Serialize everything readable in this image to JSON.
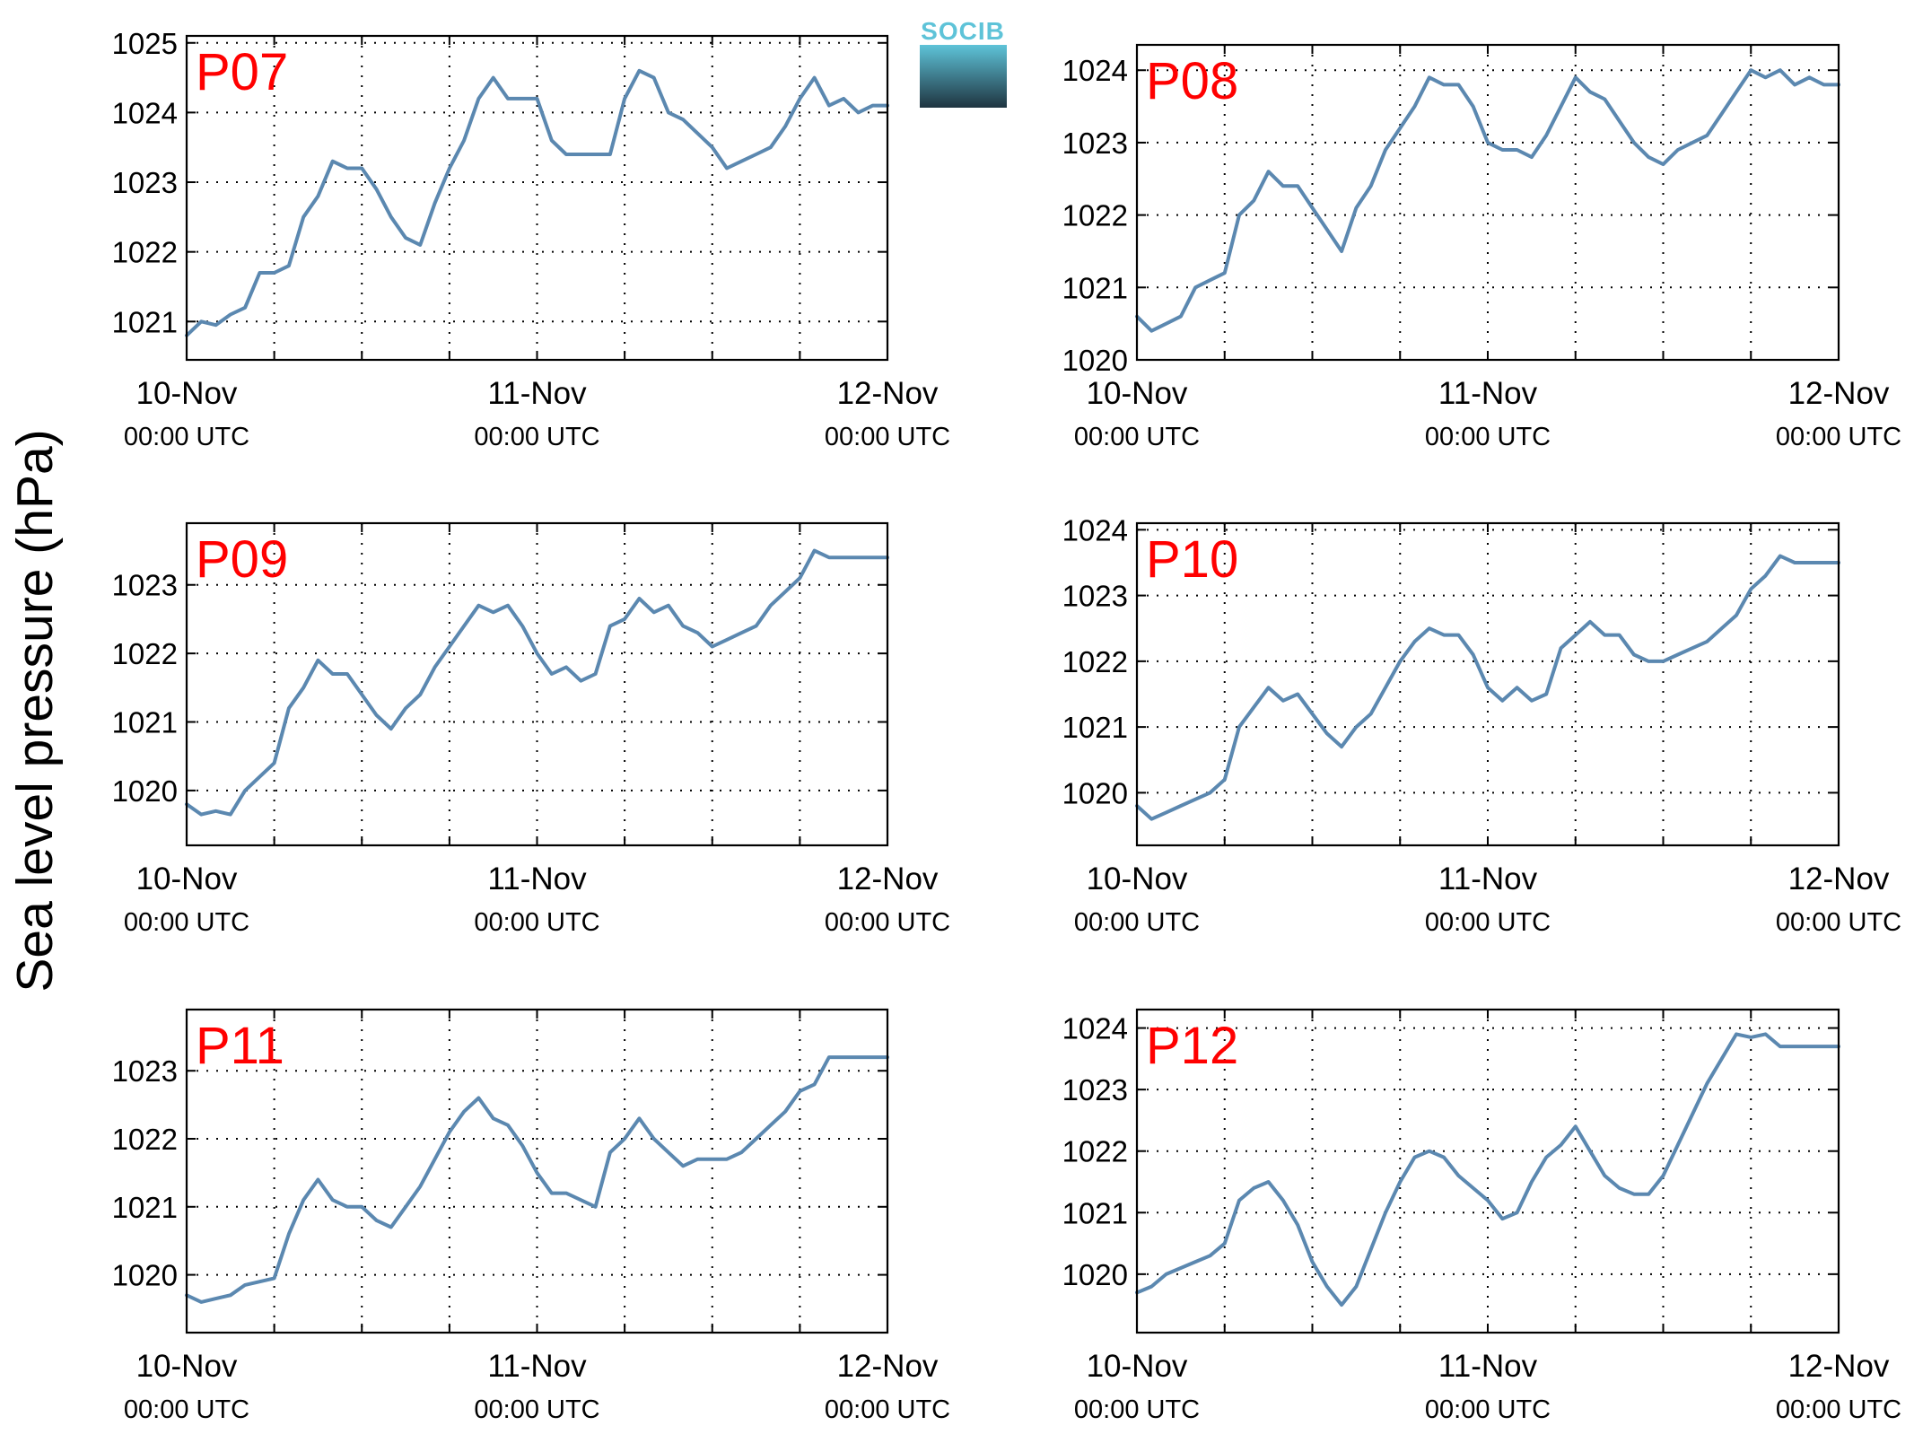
{
  "colors": {
    "line": "#5b88b0",
    "title": "#ff0000",
    "logo_top": "#5ec3d8",
    "logo_bottom": "#1f3440"
  },
  "figure": {
    "ylabel": "Sea level pressure (hPa)",
    "logo_text": "SOCIB"
  },
  "chart_data": [
    {
      "type": "line",
      "title": "P07",
      "x_ticks": [
        {
          "date": "10-Nov",
          "time": "00:00 UTC"
        },
        {
          "date": "11-Nov",
          "time": "00:00 UTC"
        },
        {
          "date": "12-Nov",
          "time": "00:00 UTC"
        }
      ],
      "xlim": [
        0,
        48
      ],
      "ylim": [
        1020.45,
        1025.1
      ],
      "y_ticks": [
        1021,
        1022,
        1023,
        1024,
        1025
      ],
      "grid": true,
      "series": [
        {
          "x": [
            0,
            1,
            2,
            3,
            4,
            5,
            6,
            7,
            8,
            9,
            10,
            11,
            12,
            13,
            14,
            15,
            16,
            17,
            18,
            19,
            20,
            21,
            22,
            23,
            24,
            25,
            26,
            27,
            28,
            29,
            30,
            31,
            32,
            33,
            34,
            35,
            36,
            37,
            38,
            39,
            40,
            41,
            42,
            43,
            44,
            45,
            46,
            47,
            48
          ],
          "y": [
            1020.8,
            1021.0,
            1020.95,
            1021.1,
            1021.2,
            1021.7,
            1021.7,
            1021.8,
            1022.5,
            1022.8,
            1023.3,
            1023.2,
            1023.2,
            1022.9,
            1022.5,
            1022.2,
            1022.1,
            1022.7,
            1023.2,
            1023.6,
            1024.2,
            1024.5,
            1024.2,
            1024.2,
            1024.2,
            1023.6,
            1023.4,
            1023.4,
            1023.4,
            1023.4,
            1024.2,
            1024.6,
            1024.5,
            1024.0,
            1023.9,
            1023.7,
            1023.5,
            1023.2,
            1023.3,
            1023.4,
            1023.5,
            1023.8,
            1024.2,
            1024.5,
            1024.1,
            1024.2,
            1024.0,
            1024.1,
            1024.1
          ]
        }
      ]
    },
    {
      "type": "line",
      "title": "P08",
      "x_ticks": [
        {
          "date": "10-Nov",
          "time": "00:00 UTC"
        },
        {
          "date": "11-Nov",
          "time": "00:00 UTC"
        },
        {
          "date": "12-Nov",
          "time": "00:00 UTC"
        }
      ],
      "xlim": [
        0,
        48
      ],
      "ylim": [
        1020,
        1024.35
      ],
      "y_ticks": [
        1020,
        1021,
        1022,
        1023,
        1024
      ],
      "grid": true,
      "series": [
        {
          "x": [
            0,
            1,
            2,
            3,
            4,
            5,
            6,
            7,
            8,
            9,
            10,
            11,
            12,
            13,
            14,
            15,
            16,
            17,
            18,
            19,
            20,
            21,
            22,
            23,
            24,
            25,
            26,
            27,
            28,
            29,
            30,
            31,
            32,
            33,
            34,
            35,
            36,
            37,
            38,
            39,
            40,
            41,
            42,
            43,
            44,
            45,
            46,
            47,
            48
          ],
          "y": [
            1020.6,
            1020.4,
            1020.5,
            1020.6,
            1021.0,
            1021.1,
            1021.2,
            1022.0,
            1022.2,
            1022.6,
            1022.4,
            1022.4,
            1022.1,
            1021.8,
            1021.5,
            1022.1,
            1022.4,
            1022.9,
            1023.2,
            1023.5,
            1023.9,
            1023.8,
            1023.8,
            1023.5,
            1023.0,
            1022.9,
            1022.9,
            1022.8,
            1023.1,
            1023.5,
            1023.9,
            1023.7,
            1023.6,
            1023.3,
            1023.0,
            1022.8,
            1022.7,
            1022.9,
            1023.0,
            1023.1,
            1023.4,
            1023.7,
            1024.0,
            1023.9,
            1024.0,
            1023.8,
            1023.9,
            1023.8,
            1023.8
          ]
        }
      ]
    },
    {
      "type": "line",
      "title": "P09",
      "x_ticks": [
        {
          "date": "10-Nov",
          "time": "00:00 UTC"
        },
        {
          "date": "11-Nov",
          "time": "00:00 UTC"
        },
        {
          "date": "12-Nov",
          "time": "00:00 UTC"
        }
      ],
      "xlim": [
        0,
        48
      ],
      "ylim": [
        1019.2,
        1023.9
      ],
      "y_ticks": [
        1020,
        1021,
        1022,
        1023
      ],
      "grid": true,
      "series": [
        {
          "x": [
            0,
            1,
            2,
            3,
            4,
            5,
            6,
            7,
            8,
            9,
            10,
            11,
            12,
            13,
            14,
            15,
            16,
            17,
            18,
            19,
            20,
            21,
            22,
            23,
            24,
            25,
            26,
            27,
            28,
            29,
            30,
            31,
            32,
            33,
            34,
            35,
            36,
            37,
            38,
            39,
            40,
            41,
            42,
            43,
            44,
            45,
            46,
            47,
            48
          ],
          "y": [
            1019.8,
            1019.65,
            1019.7,
            1019.65,
            1020.0,
            1020.2,
            1020.4,
            1021.2,
            1021.5,
            1021.9,
            1021.7,
            1021.7,
            1021.4,
            1021.1,
            1020.9,
            1021.2,
            1021.4,
            1021.8,
            1022.1,
            1022.4,
            1022.7,
            1022.6,
            1022.7,
            1022.4,
            1022.0,
            1021.7,
            1021.8,
            1021.6,
            1021.7,
            1022.4,
            1022.5,
            1022.8,
            1022.6,
            1022.7,
            1022.4,
            1022.3,
            1022.1,
            1022.2,
            1022.3,
            1022.4,
            1022.7,
            1022.9,
            1023.1,
            1023.5,
            1023.4,
            1023.4,
            1023.4,
            1023.4,
            1023.4
          ]
        }
      ]
    },
    {
      "type": "line",
      "title": "P10",
      "x_ticks": [
        {
          "date": "10-Nov",
          "time": "00:00 UTC"
        },
        {
          "date": "11-Nov",
          "time": "00:00 UTC"
        },
        {
          "date": "12-Nov",
          "time": "00:00 UTC"
        }
      ],
      "xlim": [
        0,
        48
      ],
      "ylim": [
        1019.2,
        1024.1
      ],
      "y_ticks": [
        1020,
        1021,
        1022,
        1023,
        1024
      ],
      "grid": true,
      "series": [
        {
          "x": [
            0,
            1,
            2,
            3,
            4,
            5,
            6,
            7,
            8,
            9,
            10,
            11,
            12,
            13,
            14,
            15,
            16,
            17,
            18,
            19,
            20,
            21,
            22,
            23,
            24,
            25,
            26,
            27,
            28,
            29,
            30,
            31,
            32,
            33,
            34,
            35,
            36,
            37,
            38,
            39,
            40,
            41,
            42,
            43,
            44,
            45,
            46,
            47,
            48
          ],
          "y": [
            1019.8,
            1019.6,
            1019.7,
            1019.8,
            1019.9,
            1020.0,
            1020.2,
            1021.0,
            1021.3,
            1021.6,
            1021.4,
            1021.5,
            1021.2,
            1020.9,
            1020.7,
            1021.0,
            1021.2,
            1021.6,
            1022.0,
            1022.3,
            1022.5,
            1022.4,
            1022.4,
            1022.1,
            1021.6,
            1021.4,
            1021.6,
            1021.4,
            1021.5,
            1022.2,
            1022.4,
            1022.6,
            1022.4,
            1022.4,
            1022.1,
            1022.0,
            1022.0,
            1022.1,
            1022.2,
            1022.3,
            1022.5,
            1022.7,
            1023.1,
            1023.3,
            1023.6,
            1023.5,
            1023.5,
            1023.5,
            1023.5
          ]
        }
      ]
    },
    {
      "type": "line",
      "title": "P11",
      "x_ticks": [
        {
          "date": "10-Nov",
          "time": "00:00 UTC"
        },
        {
          "date": "11-Nov",
          "time": "00:00 UTC"
        },
        {
          "date": "12-Nov",
          "time": "00:00 UTC"
        }
      ],
      "xlim": [
        0,
        48
      ],
      "ylim": [
        1019.15,
        1023.9
      ],
      "y_ticks": [
        1020,
        1021,
        1022,
        1023
      ],
      "grid": true,
      "series": [
        {
          "x": [
            0,
            1,
            2,
            3,
            4,
            5,
            6,
            7,
            8,
            9,
            10,
            11,
            12,
            13,
            14,
            15,
            16,
            17,
            18,
            19,
            20,
            21,
            22,
            23,
            24,
            25,
            26,
            27,
            28,
            29,
            30,
            31,
            32,
            33,
            34,
            35,
            36,
            37,
            38,
            39,
            40,
            41,
            42,
            43,
            44,
            45,
            46,
            47,
            48
          ],
          "y": [
            1019.7,
            1019.6,
            1019.65,
            1019.7,
            1019.85,
            1019.9,
            1019.95,
            1020.6,
            1021.1,
            1021.4,
            1021.1,
            1021.0,
            1021.0,
            1020.8,
            1020.7,
            1021.0,
            1021.3,
            1021.7,
            1022.1,
            1022.4,
            1022.6,
            1022.3,
            1022.2,
            1021.9,
            1021.5,
            1021.2,
            1021.2,
            1021.1,
            1021.0,
            1021.8,
            1022.0,
            1022.3,
            1022.0,
            1021.8,
            1021.6,
            1021.7,
            1021.7,
            1021.7,
            1021.8,
            1022.0,
            1022.2,
            1022.4,
            1022.7,
            1022.8,
            1023.2,
            1023.2,
            1023.2,
            1023.2,
            1023.2
          ]
        }
      ]
    },
    {
      "type": "line",
      "title": "P12",
      "x_ticks": [
        {
          "date": "10-Nov",
          "time": "00:00 UTC"
        },
        {
          "date": "11-Nov",
          "time": "00:00 UTC"
        },
        {
          "date": "12-Nov",
          "time": "00:00 UTC"
        }
      ],
      "xlim": [
        0,
        48
      ],
      "ylim": [
        1019.05,
        1024.3
      ],
      "y_ticks": [
        1020,
        1021,
        1022,
        1023,
        1024
      ],
      "grid": true,
      "series": [
        {
          "x": [
            0,
            1,
            2,
            3,
            4,
            5,
            6,
            7,
            8,
            9,
            10,
            11,
            12,
            13,
            14,
            15,
            16,
            17,
            18,
            19,
            20,
            21,
            22,
            23,
            24,
            25,
            26,
            27,
            28,
            29,
            30,
            31,
            32,
            33,
            34,
            35,
            36,
            37,
            38,
            39,
            40,
            41,
            42,
            43,
            44,
            45,
            46,
            47,
            48
          ],
          "y": [
            1019.7,
            1019.8,
            1020.0,
            1020.1,
            1020.2,
            1020.3,
            1020.5,
            1021.2,
            1021.4,
            1021.5,
            1021.2,
            1020.8,
            1020.2,
            1019.8,
            1019.5,
            1019.8,
            1020.4,
            1021.0,
            1021.5,
            1021.9,
            1022.0,
            1021.9,
            1021.6,
            1021.4,
            1021.2,
            1020.9,
            1021.0,
            1021.5,
            1021.9,
            1022.1,
            1022.4,
            1022.0,
            1021.6,
            1021.4,
            1021.3,
            1021.3,
            1021.6,
            1022.1,
            1022.6,
            1023.1,
            1023.5,
            1023.9,
            1023.85,
            1023.9,
            1023.7,
            1023.7,
            1023.7,
            1023.7,
            1023.7
          ]
        }
      ]
    }
  ]
}
